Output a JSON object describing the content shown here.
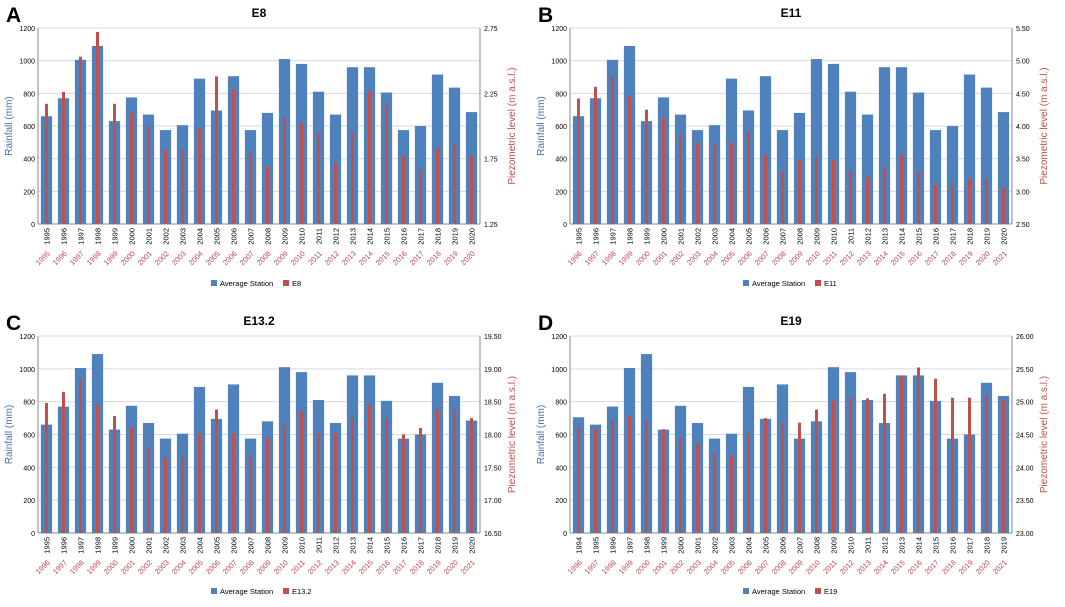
{
  "colors": {
    "rain": "#4f81bd",
    "piezo": "#c0504d",
    "rain_axis": "#4a6fa5",
    "piezo_axis": "#c0504d"
  },
  "chart_data": [
    {
      "type": "bar",
      "panel": "A",
      "title": "E8",
      "ylabel": "Rainfall (mm)",
      "y2label": "Piezometric level (m a.s.l.)",
      "ylim": [
        0,
        1200
      ],
      "yticks": [
        "0",
        "200",
        "400",
        "600",
        "800",
        "1000",
        "1200"
      ],
      "y2lim": [
        1.25,
        2.75
      ],
      "y2ticks": [
        "1.25",
        "1.75",
        "2.25",
        "2.75"
      ],
      "categories": [
        "1995",
        "1996",
        "1997",
        "1998",
        "1999",
        "2000",
        "2001",
        "2002",
        "2003",
        "2004",
        "2005",
        "2006",
        "2007",
        "2008",
        "2009",
        "2010",
        "2011",
        "2012",
        "2013",
        "2014",
        "2015",
        "2016",
        "2017",
        "2018",
        "2019",
        "2020"
      ],
      "categories2": [
        "1995",
        "1996",
        "1997",
        "1998",
        "1999",
        "2000",
        "2001",
        "2002",
        "2003",
        "2004",
        "2005",
        "2006",
        "2007",
        "2008",
        "2009",
        "2010",
        "2011",
        "2012",
        "2013",
        "2014",
        "2015",
        "2016",
        "2017",
        "2018",
        "2019",
        "2020"
      ],
      "series": [
        {
          "name": "Average Station",
          "axis": "left",
          "values": [
            660,
            770,
            1005,
            1090,
            630,
            775,
            670,
            575,
            605,
            890,
            695,
            905,
            575,
            680,
            1010,
            980,
            810,
            670,
            960,
            960,
            805,
            575,
            600,
            915,
            835,
            685
          ]
        },
        {
          "name": "E8",
          "axis": "right",
          "values": [
            2.17,
            2.26,
            2.53,
            2.72,
            2.17,
            2.1,
            2.0,
            1.82,
            1.82,
            1.98,
            2.38,
            2.28,
            1.8,
            1.69,
            2.07,
            2.02,
            1.95,
            1.72,
            1.95,
            2.27,
            2.16,
            1.77,
            1.67,
            1.83,
            1.86,
            1.77
          ]
        }
      ],
      "legend": [
        "Average Station",
        "E8"
      ]
    },
    {
      "type": "bar",
      "panel": "B",
      "title": "E11",
      "ylabel": "Rainfall (mm)",
      "y2label": "Piezometric level (m a.s.l.)",
      "ylim": [
        0,
        1200
      ],
      "yticks": [
        "0",
        "200",
        "400",
        "600",
        "800",
        "1000",
        "1200"
      ],
      "y2lim": [
        2.5,
        5.5
      ],
      "y2ticks": [
        "2.50",
        "3.00",
        "3.50",
        "4.00",
        "4.50",
        "5.00",
        "5.50"
      ],
      "categories": [
        "1995",
        "1996",
        "1997",
        "1998",
        "1999",
        "2000",
        "2001",
        "2002",
        "2003",
        "2004",
        "2005",
        "2006",
        "2007",
        "2008",
        "2009",
        "2010",
        "2011",
        "2012",
        "2013",
        "2014",
        "2015",
        "2016",
        "2017",
        "2018",
        "2019",
        "2020"
      ],
      "categories2": [
        "1996",
        "1997",
        "1998",
        "1999",
        "2000",
        "2001",
        "2002",
        "2003",
        "2004",
        "2005",
        "2006",
        "2007",
        "2008",
        "2009",
        "2010",
        "2011",
        "2012",
        "2013",
        "2014",
        "2015",
        "2016",
        "2017",
        "2018",
        "2019",
        "2020",
        "2021"
      ],
      "series": [
        {
          "name": "Average Station",
          "axis": "left",
          "values": [
            660,
            770,
            1005,
            1090,
            630,
            775,
            670,
            575,
            605,
            890,
            695,
            905,
            575,
            680,
            1010,
            980,
            810,
            670,
            960,
            960,
            805,
            575,
            600,
            915,
            835,
            685
          ]
        },
        {
          "name": "E11",
          "axis": "right",
          "values": [
            4.42,
            4.6,
            4.76,
            4.45,
            4.25,
            4.12,
            3.88,
            3.74,
            3.72,
            3.74,
            3.92,
            3.55,
            3.32,
            3.48,
            3.52,
            3.48,
            3.32,
            3.22,
            3.38,
            3.55,
            3.32,
            3.1,
            3.12,
            3.2,
            3.18,
            3.05
          ]
        }
      ],
      "legend": [
        "Average Station",
        "E11"
      ]
    },
    {
      "type": "bar",
      "panel": "C",
      "title": "E13.2",
      "ylabel": "Rainfall (mm)",
      "y2label": "Piezometric level (m a.s.l.)",
      "ylim": [
        0,
        1200
      ],
      "yticks": [
        "0",
        "200",
        "400",
        "600",
        "800",
        "1000",
        "1200"
      ],
      "y2lim": [
        16.5,
        19.5
      ],
      "y2ticks": [
        "16.50",
        "17.00",
        "17.50",
        "18.00",
        "18.50",
        "19.00",
        "19.50"
      ],
      "categories": [
        "1995",
        "1996",
        "1997",
        "1998",
        "1999",
        "2000",
        "2001",
        "2002",
        "2003",
        "2004",
        "2005",
        "2006",
        "2007",
        "2008",
        "2009",
        "2010",
        "2011",
        "2012",
        "2013",
        "2014",
        "2015",
        "2016",
        "2017",
        "2018",
        "2019",
        "2020"
      ],
      "categories2": [
        "1996",
        "1997",
        "1998",
        "1999",
        "2000",
        "2001",
        "2002",
        "2003",
        "2004",
        "2005",
        "2006",
        "2007",
        "2008",
        "2009",
        "2010",
        "2011",
        "2012",
        "2013",
        "2014",
        "2015",
        "2016",
        "2017",
        "2018",
        "2019",
        "2020",
        "2021"
      ],
      "series": [
        {
          "name": "Average Station",
          "axis": "left",
          "values": [
            660,
            770,
            1005,
            1090,
            630,
            775,
            670,
            575,
            605,
            890,
            695,
            905,
            575,
            680,
            1010,
            980,
            810,
            670,
            960,
            960,
            805,
            575,
            600,
            915,
            835,
            685
          ]
        },
        {
          "name": "E13.2",
          "axis": "right",
          "values": [
            18.48,
            18.65,
            18.85,
            18.45,
            18.28,
            18.1,
            17.8,
            17.65,
            17.68,
            18.02,
            18.38,
            18.02,
            17.68,
            17.95,
            18.15,
            18.35,
            18.02,
            18.02,
            18.25,
            18.45,
            18.25,
            18.0,
            18.1,
            18.38,
            18.38,
            18.25
          ]
        }
      ],
      "legend": [
        "Average Station",
        "E13.2"
      ]
    },
    {
      "type": "bar",
      "panel": "D",
      "title": "E19",
      "ylabel": "Rainfall (mm)",
      "y2label": "Piezometric level (m a.s.l.)",
      "ylim": [
        0,
        1200
      ],
      "yticks": [
        "0",
        "200",
        "400",
        "600",
        "800",
        "1000",
        "1200"
      ],
      "y2lim": [
        23.0,
        26.0
      ],
      "y2ticks": [
        "23.00",
        "23.50",
        "24.00",
        "24.50",
        "25.00",
        "25.50",
        "26.00"
      ],
      "categories": [
        "1994",
        "1995",
        "1996",
        "1997",
        "1998",
        "1999",
        "2000",
        "2001",
        "2002",
        "2003",
        "2004",
        "2005",
        "2006",
        "2007",
        "2008",
        "2009",
        "2010",
        "2011",
        "2012",
        "2013",
        "2014",
        "2015",
        "2016",
        "2017",
        "2018",
        "2019"
      ],
      "categories2": [
        "1996",
        "1997",
        "1998",
        "1999",
        "2000",
        "2001",
        "2002",
        "2003",
        "2004",
        "2005",
        "2006",
        "2007",
        "2008",
        "2009",
        "2010",
        "2011",
        "2012",
        "2013",
        "2014",
        "2015",
        "2016",
        "2017",
        "2018",
        "2019",
        "2020",
        "2021"
      ],
      "series": [
        {
          "name": "Average Station",
          "axis": "left",
          "values": [
            705,
            660,
            770,
            1005,
            1090,
            630,
            775,
            670,
            575,
            605,
            890,
            695,
            905,
            575,
            680,
            1010,
            980,
            810,
            670,
            960,
            960,
            805,
            575,
            600,
            915,
            835
          ]
        },
        {
          "name": "E19",
          "axis": "right",
          "values": [
            24.62,
            24.58,
            24.72,
            24.78,
            24.72,
            24.58,
            24.45,
            24.35,
            24.22,
            24.18,
            24.52,
            24.75,
            24.68,
            24.68,
            24.88,
            25.02,
            25.06,
            25.05,
            25.12,
            25.4,
            25.52,
            25.35,
            25.06,
            25.06,
            25.1,
            25.02
          ]
        }
      ],
      "legend": [
        "Average Station",
        "E19"
      ]
    }
  ]
}
